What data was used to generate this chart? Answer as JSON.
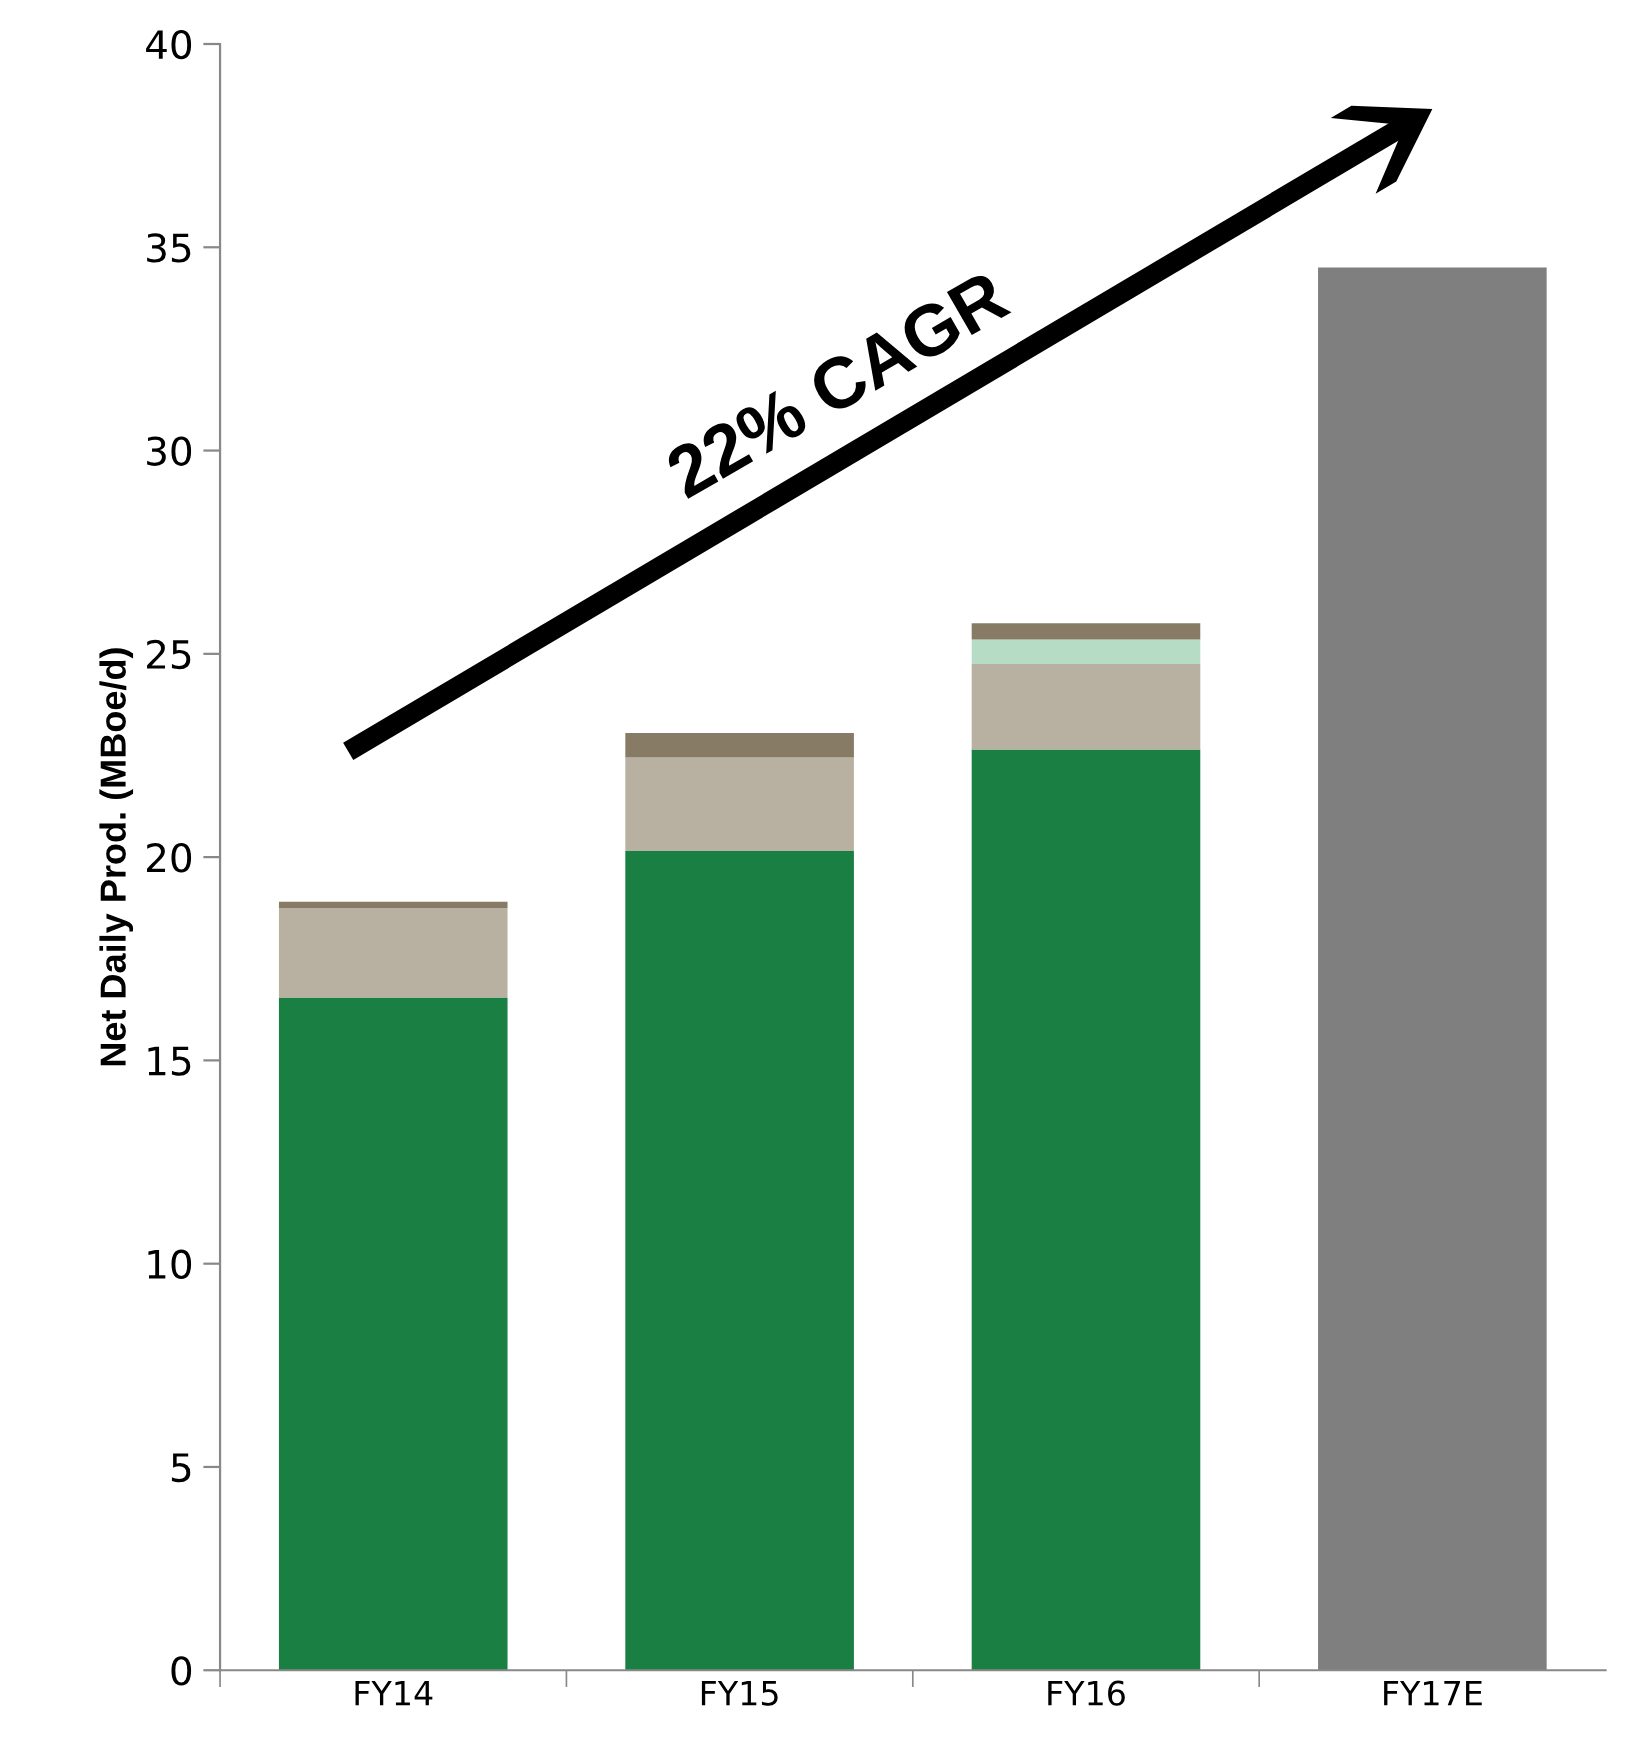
{
  "chart_data": {
    "type": "bar",
    "stacked": true,
    "ylabel": "Net Daily Prod. (MBoe/d)",
    "categories": [
      "FY14",
      "FY15",
      "FY16",
      "FY17E"
    ],
    "series": [
      {
        "color": "#1a7f43",
        "values": [
          16.55,
          20.15,
          22.65,
          null
        ]
      },
      {
        "color": "#b8b1a1",
        "values": [
          2.2,
          2.3,
          2.1,
          null
        ]
      },
      {
        "color": "#b7dcc6",
        "values": [
          null,
          null,
          0.6,
          null
        ]
      },
      {
        "color": "#877b66",
        "values": [
          0.15,
          0.6,
          0.4,
          null
        ]
      },
      {
        "color": "#7f7f7f",
        "values": [
          null,
          null,
          null,
          34.5
        ]
      }
    ],
    "ylim": [
      0,
      40
    ],
    "yticks": [
      0,
      5,
      10,
      15,
      20,
      25,
      30,
      35,
      40
    ],
    "annotations": [
      "22% CAGR"
    ]
  }
}
